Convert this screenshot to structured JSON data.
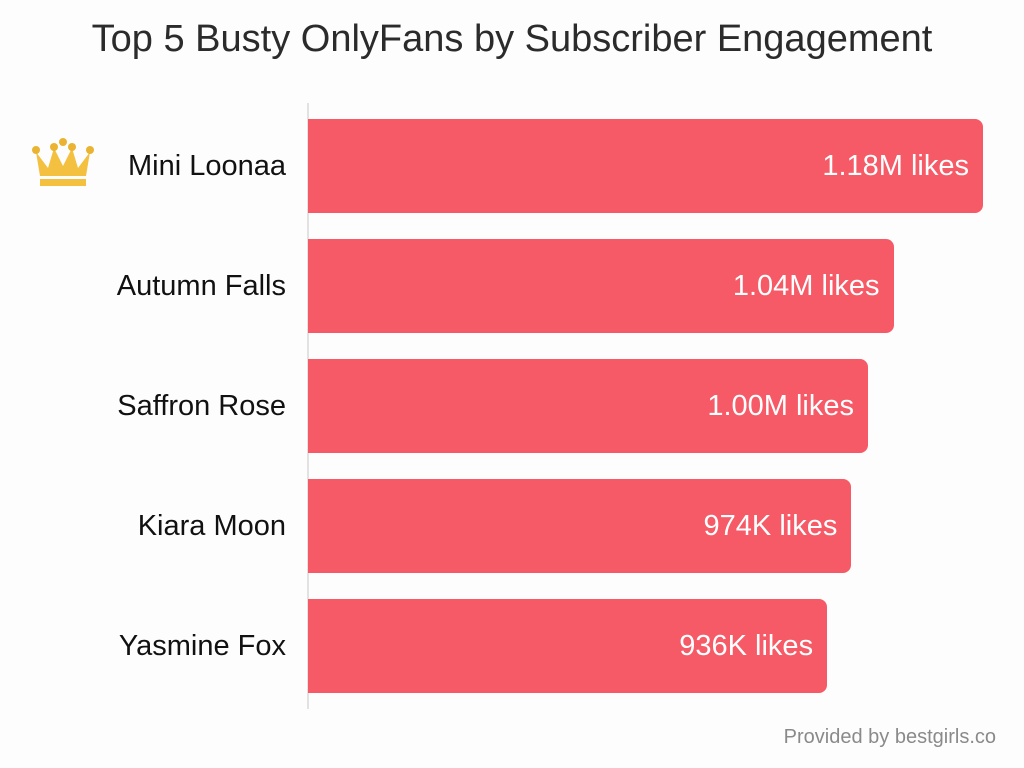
{
  "chart_data": {
    "type": "bar",
    "orientation": "horizontal",
    "title": "Top 5 Busty OnlyFans by Subscriber Engagement",
    "categories": [
      "Mini Loonaa",
      "Autumn Falls",
      "Saffron Rose",
      "Kiara Moon",
      "Yasmine Fox"
    ],
    "values": [
      1180000,
      1040000,
      1000000,
      974000,
      936000
    ],
    "data_labels": [
      "1.18M likes",
      "1.04M likes",
      "1.00M likes",
      "974K likes",
      "936K likes"
    ],
    "unit": "likes",
    "bar_color": "#f65a66",
    "grid": false,
    "top_item_icon": "crown-icon",
    "credit": "Provided by bestgirls.co"
  }
}
